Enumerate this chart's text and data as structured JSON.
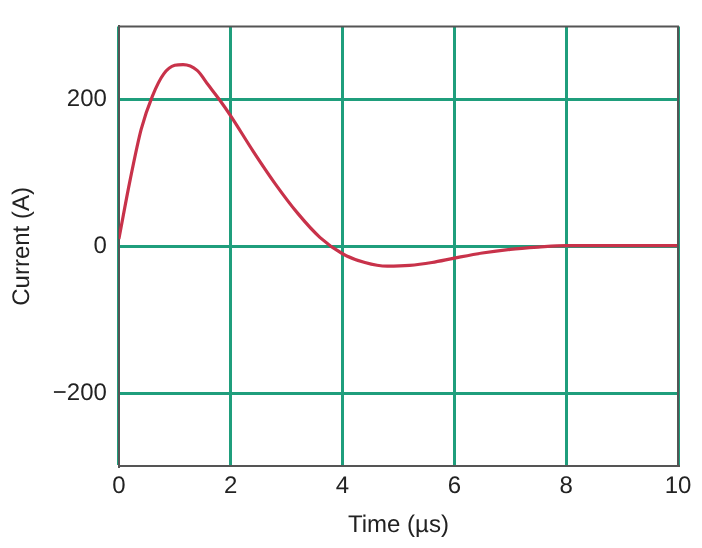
{
  "chart_data": {
    "type": "line",
    "xlabel": "Time (µs)",
    "ylabel": "Current (A)",
    "xlim": [
      0,
      10
    ],
    "xticks": [
      0,
      2,
      4,
      6,
      8,
      10
    ],
    "ylim": [
      -300,
      300
    ],
    "yticks": [
      -200,
      0,
      200
    ],
    "grid": true,
    "marker": "none",
    "line_style": "solid",
    "series": [
      {
        "color": "#c8324a",
        "x": [
          0,
          0.2,
          0.4,
          0.6,
          0.8,
          1.0,
          1.15,
          1.4,
          1.6,
          1.8,
          2.0,
          2.4,
          2.8,
          3.2,
          3.6,
          4.0,
          4.4,
          4.8,
          5.2,
          5.6,
          6.0,
          6.5,
          7.0,
          7.5,
          8,
          9,
          10
        ],
        "values": [
          10,
          90,
          160,
          205,
          235,
          247,
          248,
          240,
          220,
          200,
          178,
          130,
          85,
          45,
          12,
          -10,
          -22,
          -27,
          -26,
          -22,
          -16,
          -9,
          -4,
          -1,
          1,
          1,
          1
        ]
      }
    ]
  }
}
